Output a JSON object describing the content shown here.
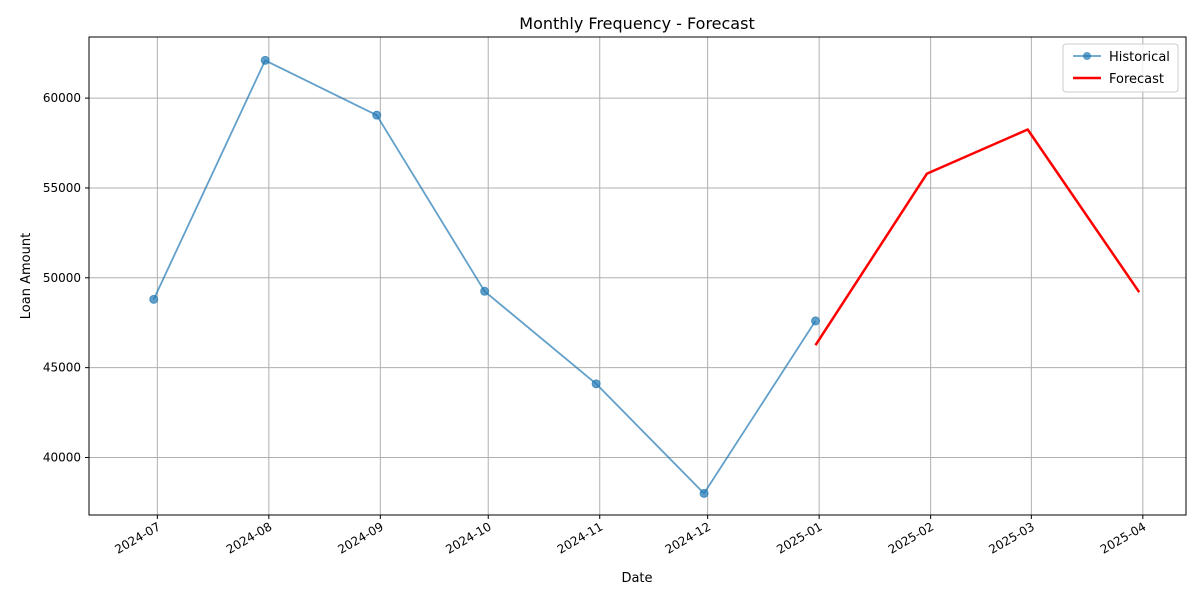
{
  "chart_data": {
    "type": "line",
    "title": "Monthly Frequency - Forecast",
    "xlabel": "Date",
    "ylabel": "Loan Amount",
    "x_ticks": [
      "2024-07",
      "2024-08",
      "2024-09",
      "2024-10",
      "2024-11",
      "2024-12",
      "2025-01",
      "2025-02",
      "2025-03",
      "2025-04"
    ],
    "y_ticks": [
      40000,
      45000,
      50000,
      55000,
      60000
    ],
    "xlim": [
      "2024-06-12",
      "2025-04-13"
    ],
    "ylim": [
      36800,
      63400
    ],
    "grid": true,
    "legend_position": "top-right",
    "series": [
      {
        "name": "Historical",
        "color": "#1f77b4",
        "style": "line-with-circle-markers",
        "points": [
          {
            "x": "2024-06-30",
            "y": 48800
          },
          {
            "x": "2024-07-31",
            "y": 62100
          },
          {
            "x": "2024-08-31",
            "y": 59050
          },
          {
            "x": "2024-09-30",
            "y": 49250
          },
          {
            "x": "2024-10-31",
            "y": 44100
          },
          {
            "x": "2024-11-30",
            "y": 38000
          },
          {
            "x": "2024-12-31",
            "y": 47600
          }
        ]
      },
      {
        "name": "Forecast",
        "color": "#ff0000",
        "style": "solid-line",
        "points": [
          {
            "x": "2024-12-31",
            "y": 46250
          },
          {
            "x": "2025-01-31",
            "y": 55800
          },
          {
            "x": "2025-02-28",
            "y": 58250
          },
          {
            "x": "2025-03-31",
            "y": 49200
          }
        ]
      }
    ]
  }
}
